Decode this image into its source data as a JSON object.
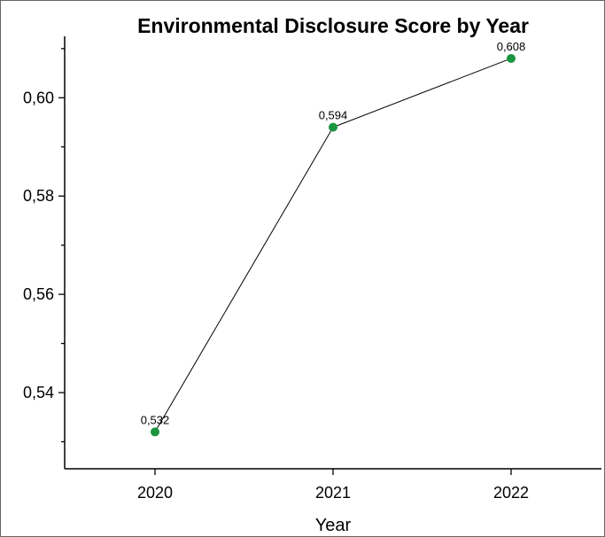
{
  "chart_data": {
    "type": "line",
    "title": "Environmental Disclosure Score by Year",
    "xlabel": "Year",
    "ylabel": "",
    "categories": [
      "2020",
      "2021",
      "2022"
    ],
    "series": [
      {
        "values": [
          0.532,
          0.594,
          0.608
        ],
        "data_labels": [
          "0,532",
          "0,594",
          "0,608"
        ]
      }
    ],
    "ylim": [
      0.5245,
      0.6125
    ],
    "yticks": [
      0.54,
      0.56,
      0.58,
      0.6
    ],
    "ytick_labels": [
      "0,54",
      "0,56",
      "0,58",
      "0,60"
    ],
    "grid": false,
    "legend": "none",
    "colors": {
      "marker": "#1a9641",
      "line": "#000000",
      "axis": "#000000"
    }
  }
}
